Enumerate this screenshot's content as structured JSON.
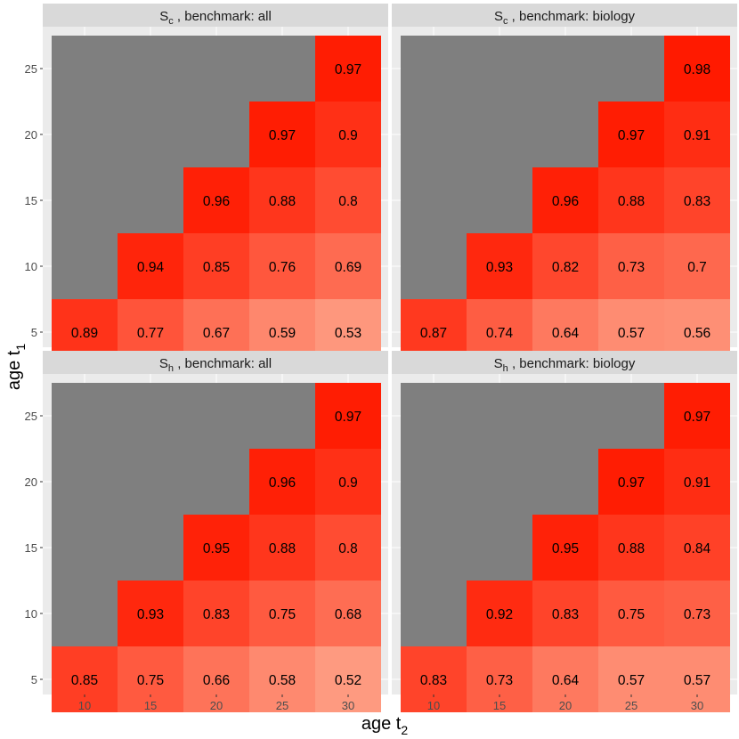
{
  "chart_data": {
    "type": "heatmap",
    "xlabel": {
      "main": "age t",
      "sub": "2"
    },
    "ylabel": {
      "main": "age t",
      "sub": "1"
    },
    "x_ticks": [
      10,
      15,
      20,
      25,
      30
    ],
    "y_ticks": [
      5,
      10,
      15,
      20,
      25
    ],
    "colors": {
      "missing": "#7f7f7f",
      "panel_bg": "#ebebeb",
      "strip_bg": "#d9d9d9",
      "grid": "#ffffff",
      "low": "#fe9a80",
      "high": "#ff1a00"
    },
    "color_scale": [
      0.52,
      0.98
    ],
    "panels": [
      {
        "title_main": "S",
        "title_sub": "c",
        "title_rest": " , benchmark: all",
        "cells": [
          {
            "age_t1": 5,
            "age_t2": 10,
            "value": 0.89,
            "label": "0.89"
          },
          {
            "age_t1": 5,
            "age_t2": 15,
            "value": 0.77,
            "label": "0.77"
          },
          {
            "age_t1": 5,
            "age_t2": 20,
            "value": 0.67,
            "label": "0.67"
          },
          {
            "age_t1": 5,
            "age_t2": 25,
            "value": 0.59,
            "label": "0.59"
          },
          {
            "age_t1": 5,
            "age_t2": 30,
            "value": 0.53,
            "label": "0.53"
          },
          {
            "age_t1": 10,
            "age_t2": 15,
            "value": 0.94,
            "label": "0.94"
          },
          {
            "age_t1": 10,
            "age_t2": 20,
            "value": 0.85,
            "label": "0.85"
          },
          {
            "age_t1": 10,
            "age_t2": 25,
            "value": 0.76,
            "label": "0.76"
          },
          {
            "age_t1": 10,
            "age_t2": 30,
            "value": 0.69,
            "label": "0.69"
          },
          {
            "age_t1": 15,
            "age_t2": 20,
            "value": 0.96,
            "label": "0.96"
          },
          {
            "age_t1": 15,
            "age_t2": 25,
            "value": 0.88,
            "label": "0.88"
          },
          {
            "age_t1": 15,
            "age_t2": 30,
            "value": 0.8,
            "label": "0.8"
          },
          {
            "age_t1": 20,
            "age_t2": 25,
            "value": 0.97,
            "label": "0.97"
          },
          {
            "age_t1": 20,
            "age_t2": 30,
            "value": 0.9,
            "label": "0.9"
          },
          {
            "age_t1": 25,
            "age_t2": 30,
            "value": 0.97,
            "label": "0.97"
          }
        ]
      },
      {
        "title_main": "S",
        "title_sub": "c",
        "title_rest": " , benchmark: biology",
        "cells": [
          {
            "age_t1": 5,
            "age_t2": 10,
            "value": 0.87,
            "label": "0.87"
          },
          {
            "age_t1": 5,
            "age_t2": 15,
            "value": 0.74,
            "label": "0.74"
          },
          {
            "age_t1": 5,
            "age_t2": 20,
            "value": 0.64,
            "label": "0.64"
          },
          {
            "age_t1": 5,
            "age_t2": 25,
            "value": 0.57,
            "label": "0.57"
          },
          {
            "age_t1": 5,
            "age_t2": 30,
            "value": 0.56,
            "label": "0.56"
          },
          {
            "age_t1": 10,
            "age_t2": 15,
            "value": 0.93,
            "label": "0.93"
          },
          {
            "age_t1": 10,
            "age_t2": 20,
            "value": 0.82,
            "label": "0.82"
          },
          {
            "age_t1": 10,
            "age_t2": 25,
            "value": 0.73,
            "label": "0.73"
          },
          {
            "age_t1": 10,
            "age_t2": 30,
            "value": 0.7,
            "label": "0.7"
          },
          {
            "age_t1": 15,
            "age_t2": 20,
            "value": 0.96,
            "label": "0.96"
          },
          {
            "age_t1": 15,
            "age_t2": 25,
            "value": 0.88,
            "label": "0.88"
          },
          {
            "age_t1": 15,
            "age_t2": 30,
            "value": 0.83,
            "label": "0.83"
          },
          {
            "age_t1": 20,
            "age_t2": 25,
            "value": 0.97,
            "label": "0.97"
          },
          {
            "age_t1": 20,
            "age_t2": 30,
            "value": 0.91,
            "label": "0.91"
          },
          {
            "age_t1": 25,
            "age_t2": 30,
            "value": 0.98,
            "label": "0.98"
          }
        ]
      },
      {
        "title_main": "S",
        "title_sub": "h",
        "title_rest": " , benchmark: all",
        "cells": [
          {
            "age_t1": 5,
            "age_t2": 10,
            "value": 0.85,
            "label": "0.85"
          },
          {
            "age_t1": 5,
            "age_t2": 15,
            "value": 0.75,
            "label": "0.75"
          },
          {
            "age_t1": 5,
            "age_t2": 20,
            "value": 0.66,
            "label": "0.66"
          },
          {
            "age_t1": 5,
            "age_t2": 25,
            "value": 0.58,
            "label": "0.58"
          },
          {
            "age_t1": 5,
            "age_t2": 30,
            "value": 0.52,
            "label": "0.52"
          },
          {
            "age_t1": 10,
            "age_t2": 15,
            "value": 0.93,
            "label": "0.93"
          },
          {
            "age_t1": 10,
            "age_t2": 20,
            "value": 0.83,
            "label": "0.83"
          },
          {
            "age_t1": 10,
            "age_t2": 25,
            "value": 0.75,
            "label": "0.75"
          },
          {
            "age_t1": 10,
            "age_t2": 30,
            "value": 0.68,
            "label": "0.68"
          },
          {
            "age_t1": 15,
            "age_t2": 20,
            "value": 0.95,
            "label": "0.95"
          },
          {
            "age_t1": 15,
            "age_t2": 25,
            "value": 0.88,
            "label": "0.88"
          },
          {
            "age_t1": 15,
            "age_t2": 30,
            "value": 0.8,
            "label": "0.8"
          },
          {
            "age_t1": 20,
            "age_t2": 25,
            "value": 0.96,
            "label": "0.96"
          },
          {
            "age_t1": 20,
            "age_t2": 30,
            "value": 0.9,
            "label": "0.9"
          },
          {
            "age_t1": 25,
            "age_t2": 30,
            "value": 0.97,
            "label": "0.97"
          }
        ]
      },
      {
        "title_main": "S",
        "title_sub": "h",
        "title_rest": " , benchmark: biology",
        "cells": [
          {
            "age_t1": 5,
            "age_t2": 10,
            "value": 0.83,
            "label": "0.83"
          },
          {
            "age_t1": 5,
            "age_t2": 15,
            "value": 0.73,
            "label": "0.73"
          },
          {
            "age_t1": 5,
            "age_t2": 20,
            "value": 0.64,
            "label": "0.64"
          },
          {
            "age_t1": 5,
            "age_t2": 25,
            "value": 0.57,
            "label": "0.57"
          },
          {
            "age_t1": 5,
            "age_t2": 30,
            "value": 0.57,
            "label": "0.57"
          },
          {
            "age_t1": 10,
            "age_t2": 15,
            "value": 0.92,
            "label": "0.92"
          },
          {
            "age_t1": 10,
            "age_t2": 20,
            "value": 0.83,
            "label": "0.83"
          },
          {
            "age_t1": 10,
            "age_t2": 25,
            "value": 0.75,
            "label": "0.75"
          },
          {
            "age_t1": 10,
            "age_t2": 30,
            "value": 0.73,
            "label": "0.73"
          },
          {
            "age_t1": 15,
            "age_t2": 20,
            "value": 0.95,
            "label": "0.95"
          },
          {
            "age_t1": 15,
            "age_t2": 25,
            "value": 0.88,
            "label": "0.88"
          },
          {
            "age_t1": 15,
            "age_t2": 30,
            "value": 0.84,
            "label": "0.84"
          },
          {
            "age_t1": 20,
            "age_t2": 25,
            "value": 0.97,
            "label": "0.97"
          },
          {
            "age_t1": 20,
            "age_t2": 30,
            "value": 0.91,
            "label": "0.91"
          },
          {
            "age_t1": 25,
            "age_t2": 30,
            "value": 0.97,
            "label": "0.97"
          }
        ]
      }
    ]
  }
}
